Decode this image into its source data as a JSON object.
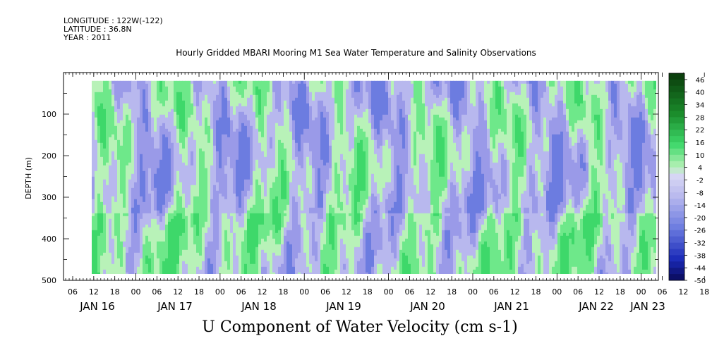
{
  "header": {
    "longitude": "LONGITUDE : 122W(-122)",
    "latitude": "LATITUDE : 36.8N",
    "year": "YEAR : 2011"
  },
  "chart_data": {
    "type": "heatmap",
    "title": "Hourly Gridded MBARI Mooring M1 Sea Water Temperature and Salinity Observations",
    "xlabel": "U Component of Water Velocity (cm s-1)",
    "ylabel": "DEPTH (m)",
    "x_hour_ticks": [
      "06",
      "12",
      "18",
      "00",
      "06",
      "12",
      "18",
      "00",
      "06",
      "12",
      "18",
      "00",
      "06",
      "12",
      "18",
      "00",
      "06",
      "12",
      "18",
      "00",
      "06",
      "12",
      "18",
      "00",
      "06",
      "12",
      "18",
      "00",
      "06",
      "12",
      "18",
      "00",
      "06",
      "12",
      "18",
      "00"
    ],
    "x_day_labels": [
      "JAN 16",
      "JAN 17",
      "JAN 18",
      "JAN 19",
      "JAN 20",
      "JAN 21",
      "JAN 22",
      "JAN 23"
    ],
    "y_ticks": [
      100,
      200,
      300,
      400,
      500
    ],
    "ylim": [
      500,
      0
    ],
    "data_depth_range": [
      20,
      485
    ],
    "colorbar": {
      "ticks": [
        46,
        40,
        34,
        28,
        22,
        16,
        10,
        4,
        -2,
        -8,
        -14,
        -20,
        -26,
        -32,
        -38,
        -44,
        -50
      ],
      "range": [
        -50,
        49
      ]
    },
    "colors": {
      "negative_light": "#b8b8ee",
      "negative_mid": "#9a9ae8",
      "negative_strong": "#6c7ce0",
      "positive_light": "#b8f2b8",
      "positive_mid": "#6ee88a",
      "positive_strong": "#3ed86a",
      "colorbar_top": "#0a3a0a",
      "colorbar_bottom": "#0a0a5a"
    },
    "field_description": "alternating bands of positive (green) and negative (blue) U velocity, mostly within -20 to +25 cm/s"
  }
}
